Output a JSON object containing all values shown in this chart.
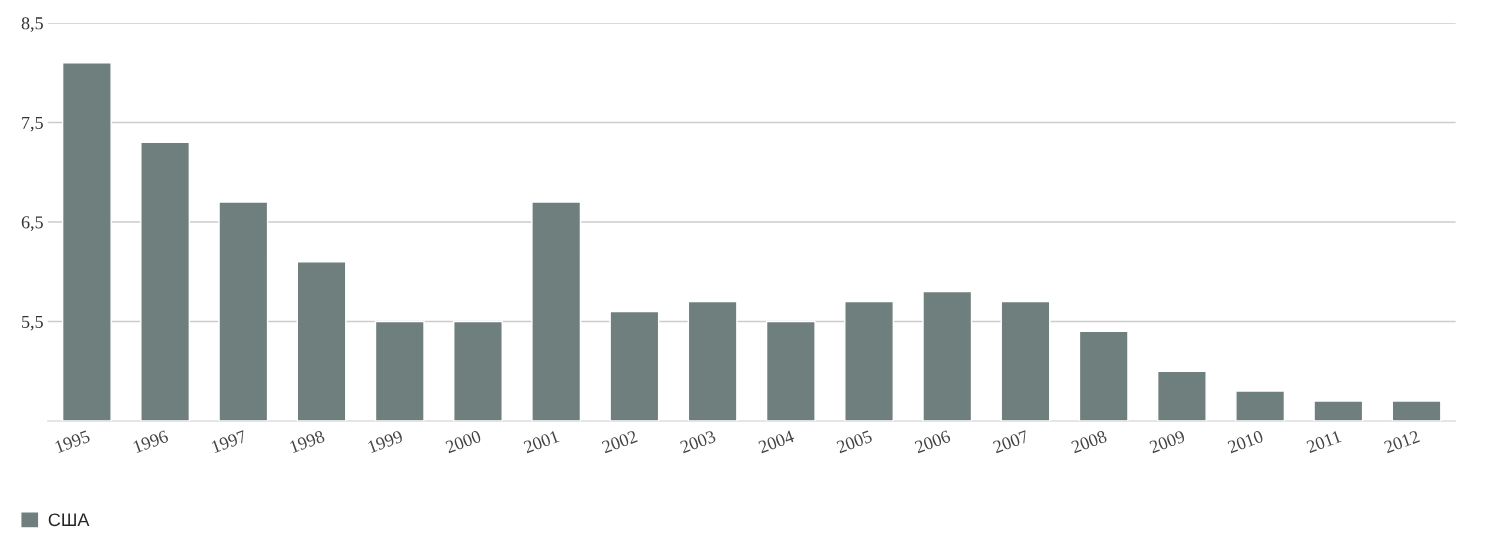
{
  "chart_data": {
    "type": "bar",
    "categories": [
      "1995",
      "1996",
      "1997",
      "1998",
      "1999",
      "2000",
      "2001",
      "2002",
      "2003",
      "2004",
      "2005",
      "2006",
      "2007",
      "2008",
      "2009",
      "2010",
      "2011",
      "2012"
    ],
    "series": [
      {
        "name": "США",
        "color": "#6e7f7e",
        "values": [
          8.1,
          7.3,
          6.7,
          6.1,
          5.5,
          5.5,
          6.7,
          5.6,
          5.7,
          5.5,
          5.7,
          5.8,
          5.7,
          5.4,
          5.0,
          4.8,
          4.7,
          4.7
        ]
      }
    ],
    "ylim": [
      4.5,
      8.5
    ],
    "yticks": [
      {
        "value": 5.5,
        "label": "5,5"
      },
      {
        "value": 6.5,
        "label": "6,5"
      },
      {
        "value": 7.5,
        "label": "7,5"
      },
      {
        "value": 8.5,
        "label": "8,5"
      }
    ],
    "grid": "y",
    "legend": "bottom left"
  }
}
